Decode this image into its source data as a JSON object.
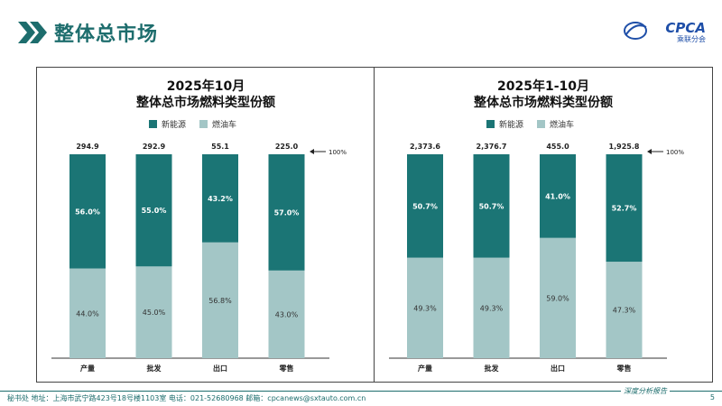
{
  "header": {
    "title": "整体总市场"
  },
  "logo": {
    "brand": "CPCA",
    "sub": "乘联分会"
  },
  "colors": {
    "nev": "#1b7575",
    "ice": "#a3c6c6",
    "accent": "#1d6d6d"
  },
  "chart_data": [
    {
      "type": "bar",
      "stacked": true,
      "normalized": true,
      "title": "2025年10月",
      "subtitle": "整体总市场燃料类型份额",
      "categories": [
        "产量",
        "批发",
        "出口",
        "零售"
      ],
      "totals": [
        "294.9",
        "292.9",
        "55.1",
        "225.0"
      ],
      "series": [
        {
          "name": "新能源",
          "values": [
            56.0,
            55.0,
            43.2,
            57.0
          ],
          "labels": [
            "56.0%",
            "55.0%",
            "43.2%",
            "57.0%"
          ]
        },
        {
          "name": "燃油车",
          "values": [
            44.0,
            45.0,
            56.8,
            43.0
          ],
          "labels": [
            "44.0%",
            "45.0%",
            "56.8%",
            "43.0%"
          ]
        }
      ],
      "reference_label": "100%",
      "ylim": [
        0,
        100
      ],
      "legend": "top",
      "grid": false
    },
    {
      "type": "bar",
      "stacked": true,
      "normalized": true,
      "title": "2025年1-10月",
      "subtitle": "整体总市场燃料类型份额",
      "categories": [
        "产量",
        "批发",
        "出口",
        "零售"
      ],
      "totals": [
        "2,373.6",
        "2,376.7",
        "455.0",
        "1,925.8"
      ],
      "series": [
        {
          "name": "新能源",
          "values": [
            50.7,
            50.7,
            41.0,
            52.7
          ],
          "labels": [
            "50.7%",
            "50.7%",
            "41.0%",
            "52.7%"
          ]
        },
        {
          "name": "燃油车",
          "values": [
            49.3,
            49.3,
            59.0,
            47.3
          ],
          "labels": [
            "49.3%",
            "49.3%",
            "59.0%",
            "47.3%"
          ]
        }
      ],
      "reference_label": "100%",
      "ylim": [
        0,
        100
      ],
      "legend": "top",
      "grid": false
    }
  ],
  "footer": {
    "text": "秘书处   地址：上海市武宁路423号18号楼1103室   电话：021-52680968   邮箱：cpcanews@sxtauto.com.cn",
    "report": "深度分析报告",
    "page": "5"
  }
}
